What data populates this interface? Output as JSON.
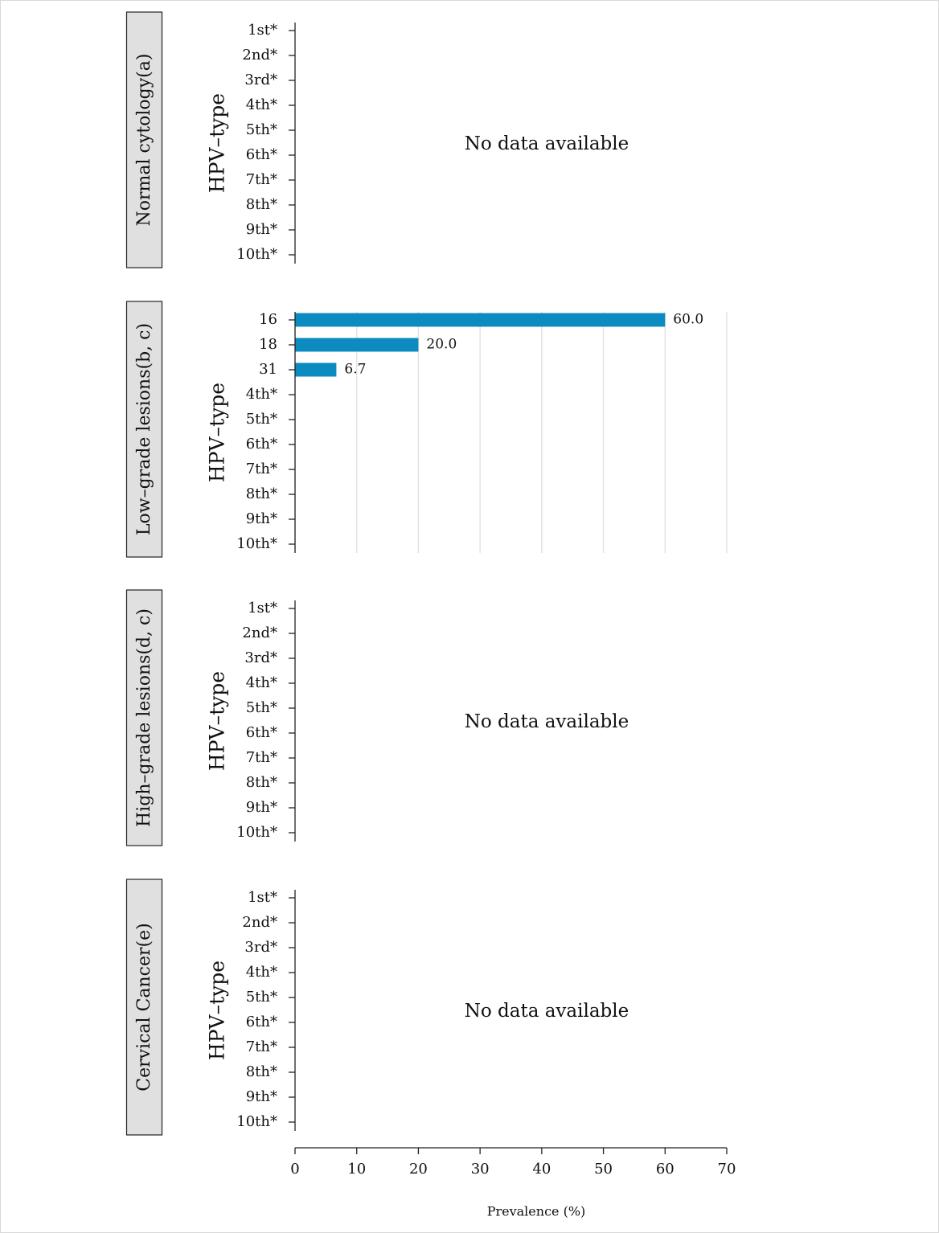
{
  "chart_data": [
    {
      "type": "bar",
      "panel_label": "Normal cytology(a)",
      "ylabel": "HPV–type",
      "categories": [
        "1st*",
        "2nd*",
        "3rd*",
        "4th*",
        "5th*",
        "6th*",
        "7th*",
        "8th*",
        "9th*",
        "10th*"
      ],
      "annotation": "No data available"
    },
    {
      "type": "bar",
      "panel_label": "Low–grade lesions(b, c)",
      "ylabel": "HPV–type",
      "categories": [
        "16",
        "18",
        "31",
        "4th*",
        "5th*",
        "6th*",
        "7th*",
        "8th*",
        "9th*",
        "10th*"
      ],
      "values": [
        60.0,
        20.0,
        6.7,
        null,
        null,
        null,
        null,
        null,
        null,
        null
      ],
      "value_labels": [
        "60.0",
        "20.0",
        "6.7",
        null,
        null,
        null,
        null,
        null,
        null,
        null
      ],
      "color": "#0b8bbf",
      "xlim": [
        0,
        70
      ],
      "xticks": [
        0,
        10,
        20,
        30,
        40,
        50,
        60,
        70
      ],
      "grid": true
    },
    {
      "type": "bar",
      "panel_label": "High–grade lesions(d, c)",
      "ylabel": "HPV–type",
      "categories": [
        "1st*",
        "2nd*",
        "3rd*",
        "4th*",
        "5th*",
        "6th*",
        "7th*",
        "8th*",
        "9th*",
        "10th*"
      ],
      "annotation": "No data available"
    },
    {
      "type": "bar",
      "panel_label": "Cervical Cancer(e)",
      "ylabel": "HPV–type",
      "categories": [
        "1st*",
        "2nd*",
        "3rd*",
        "4th*",
        "5th*",
        "6th*",
        "7th*",
        "8th*",
        "9th*",
        "10th*"
      ],
      "annotation": "No data available",
      "xlim": [
        0,
        70
      ],
      "xticks": [
        0,
        10,
        20,
        30,
        40,
        50,
        60,
        70
      ],
      "xlabel": "Prevalence (%)"
    }
  ]
}
